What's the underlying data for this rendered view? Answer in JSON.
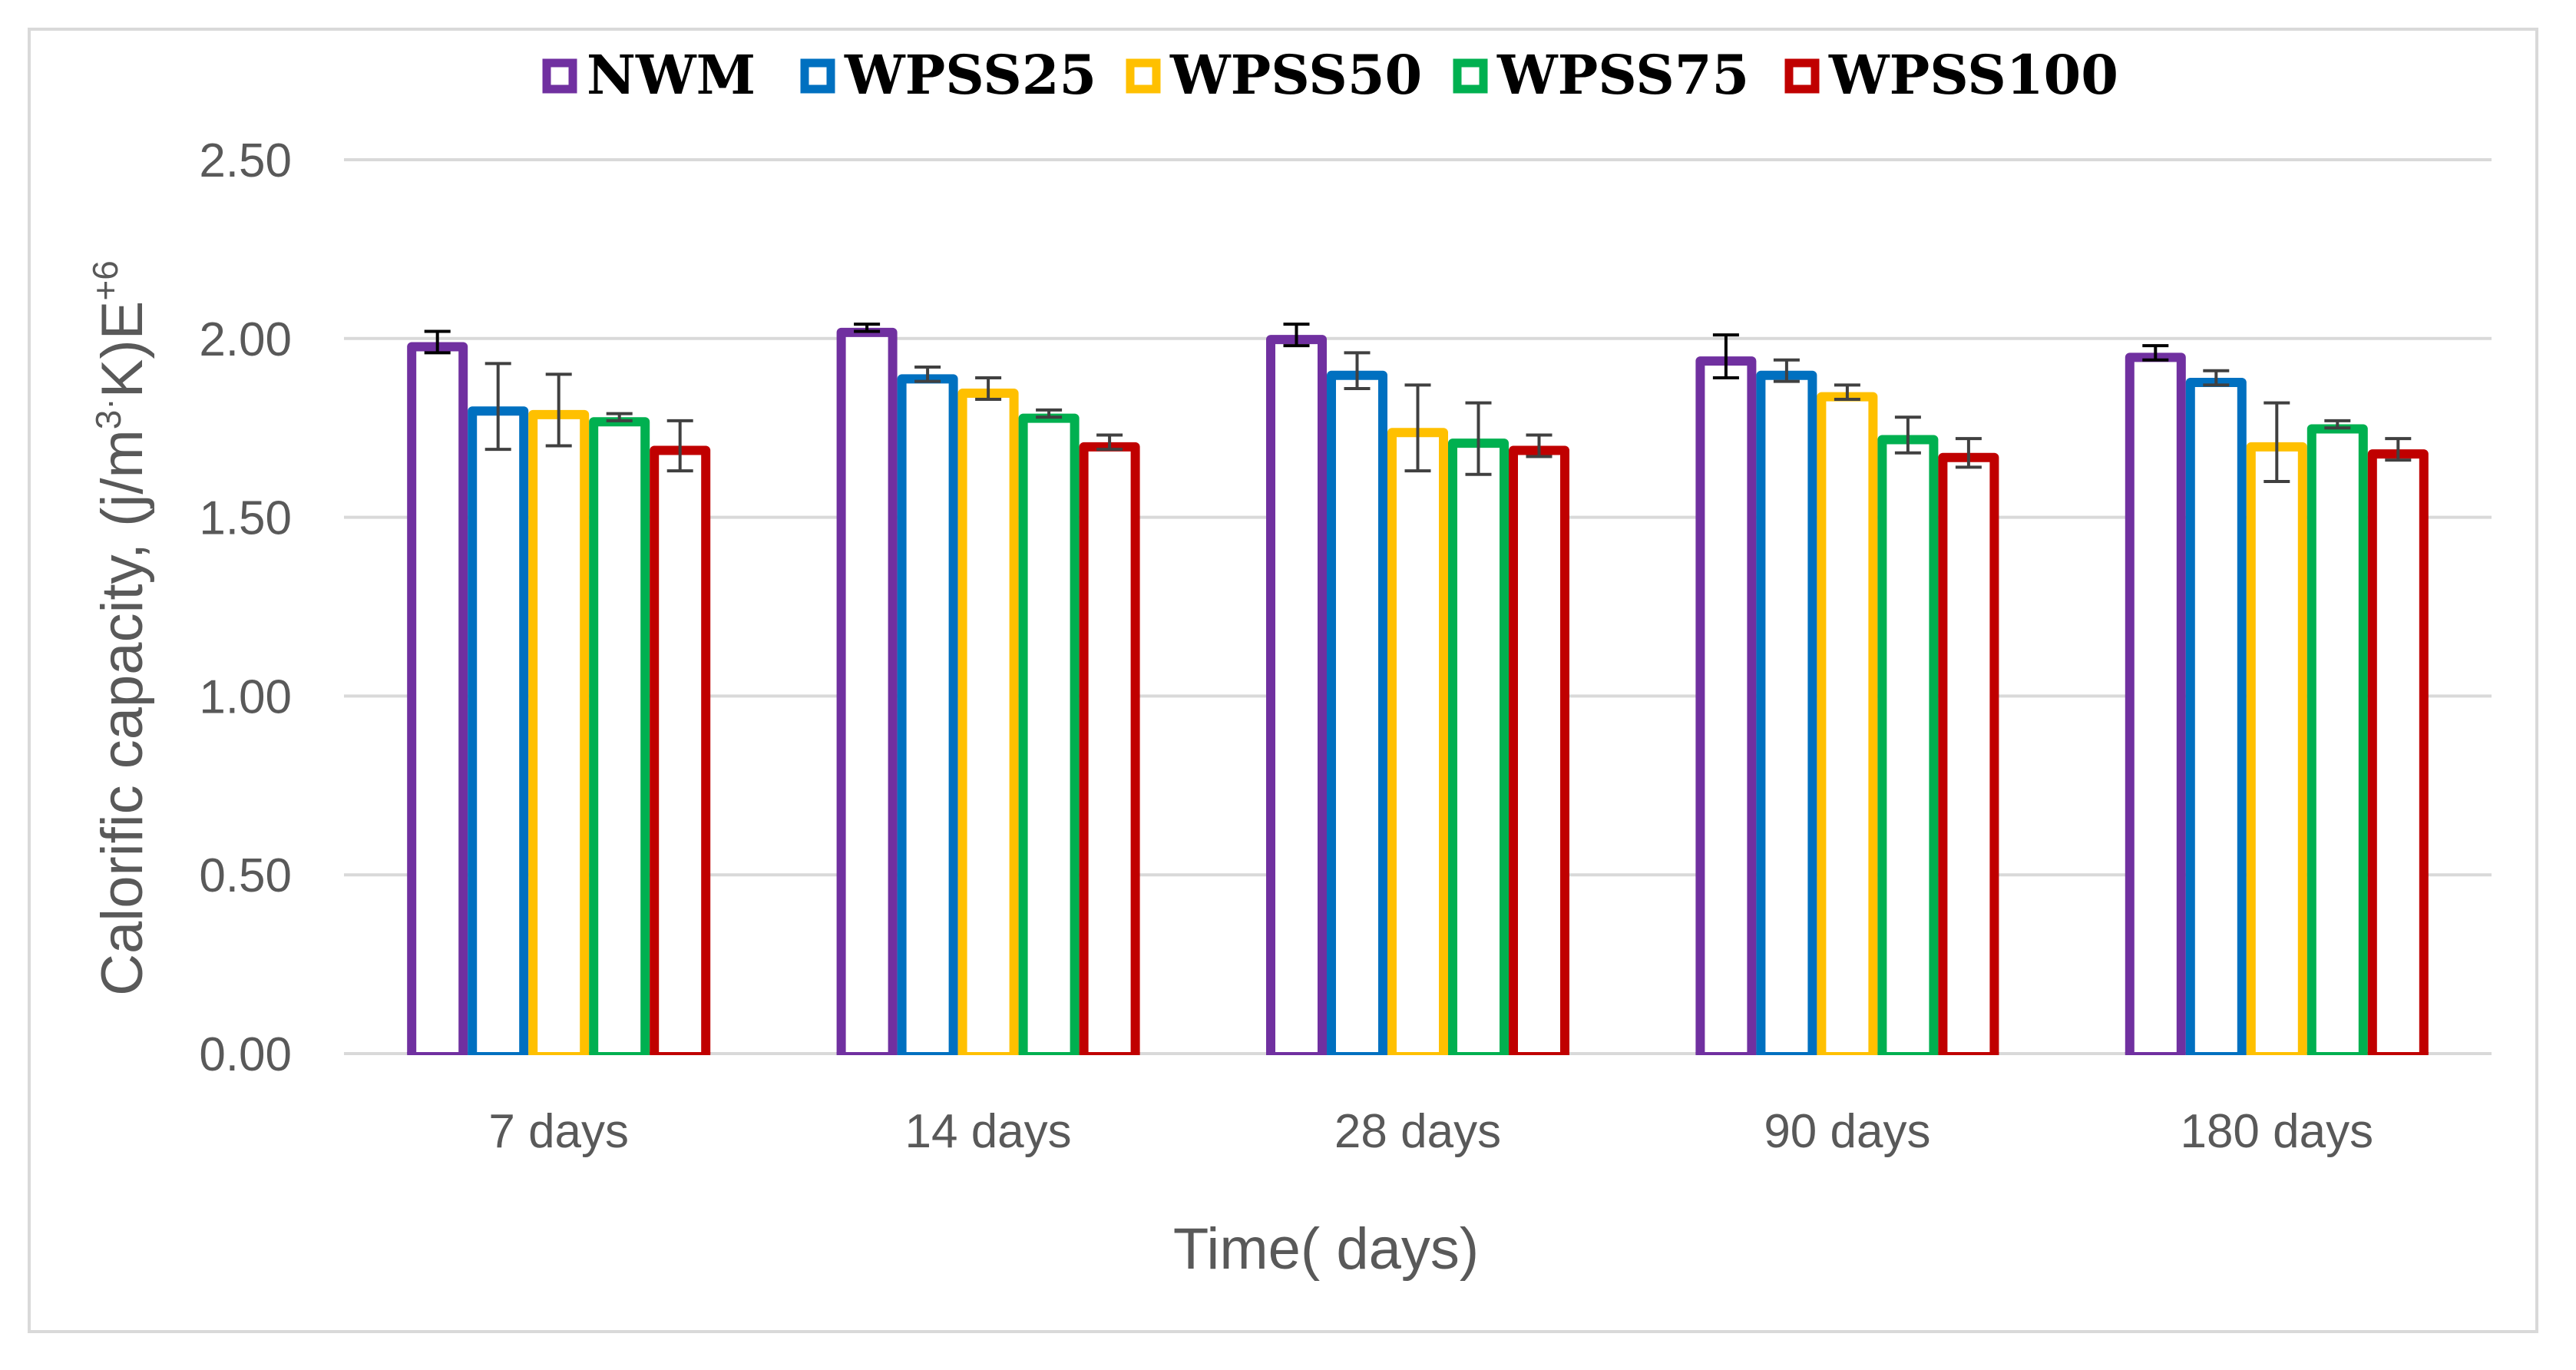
{
  "chart_data": {
    "type": "bar",
    "title": "",
    "xlabel": "Time( days)",
    "ylabel_main": "Calorific capacity,  (j/m",
    "ylabel_sup1": "3",
    "ylabel_dot": "·",
    "ylabel_mid": "K)E",
    "ylabel_sup2": "+6",
    "ylim": [
      0,
      2.5
    ],
    "yticks": [
      "0.00",
      "0.50",
      "1.00",
      "1.50",
      "2.00",
      "2.50"
    ],
    "categories": [
      "7 days",
      "14 days",
      "28 days",
      "90 days",
      "180 days"
    ],
    "grid": true,
    "legend_position": "top",
    "series": [
      {
        "name": "NWM",
        "color": "#7030a0",
        "values": [
          1.99,
          2.03,
          2.01,
          1.95,
          1.96
        ],
        "errors": [
          0.03,
          0.01,
          0.03,
          0.06,
          0.02
        ]
      },
      {
        "name": "WPSS25",
        "color": "#0070c0",
        "values": [
          1.81,
          1.9,
          1.91,
          1.91,
          1.89
        ],
        "errors": [
          0.12,
          0.02,
          0.05,
          0.03,
          0.02
        ]
      },
      {
        "name": "WPSS50",
        "color": "#ffc000",
        "values": [
          1.8,
          1.86,
          1.75,
          1.85,
          1.71
        ],
        "errors": [
          0.1,
          0.03,
          0.12,
          0.02,
          0.11
        ]
      },
      {
        "name": "WPSS75",
        "color": "#00b050",
        "values": [
          1.78,
          1.79,
          1.72,
          1.73,
          1.76
        ],
        "errors": [
          0.01,
          0.01,
          0.1,
          0.05,
          0.01
        ]
      },
      {
        "name": "WPSS100",
        "color": "#c00000",
        "values": [
          1.7,
          1.71,
          1.7,
          1.68,
          1.69
        ],
        "errors": [
          0.07,
          0.02,
          0.03,
          0.04,
          0.03
        ]
      }
    ]
  }
}
